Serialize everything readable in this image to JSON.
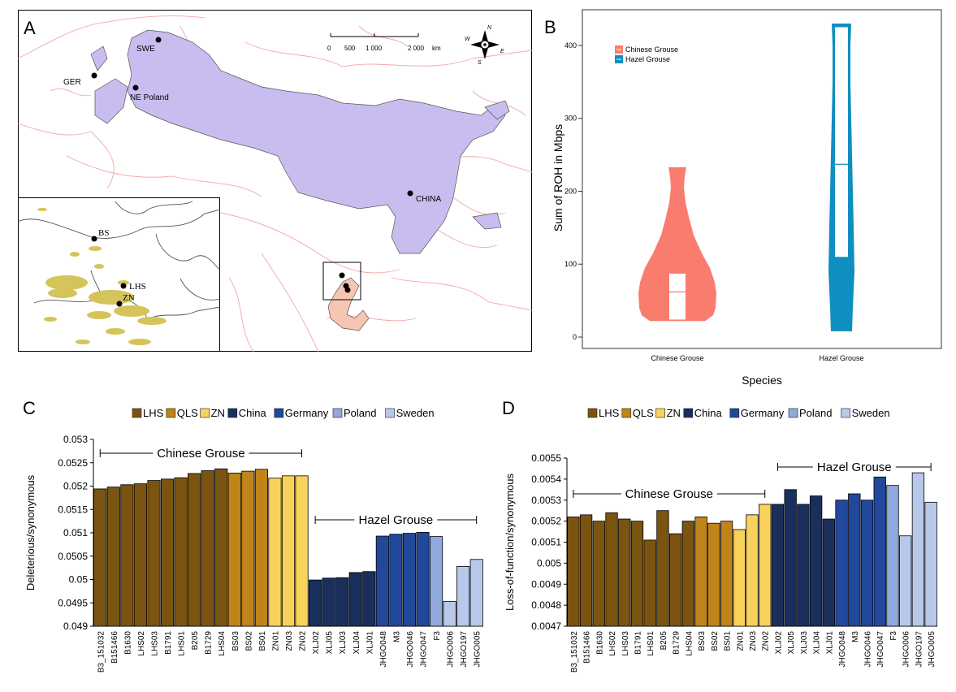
{
  "panels": {
    "A": {
      "letter": "A",
      "scale": {
        "ticks": [
          "0",
          "500",
          "1 000",
          "2 000"
        ],
        "unit": "km"
      },
      "compass": {
        "N": "N",
        "S": "S",
        "E": "E",
        "W": "W"
      },
      "sites": [
        {
          "label": "SWE"
        },
        {
          "label": "GER"
        },
        {
          "label": "NE Poland"
        },
        {
          "label": "CHINA"
        }
      ],
      "inset_sites": [
        {
          "label": "BS"
        },
        {
          "label": "LHS"
        },
        {
          "label": "ZN"
        }
      ],
      "colors": {
        "hazel_range": "#c9bdf0",
        "chinese_range": "#f6c6b2",
        "borders": "#f2a8a8",
        "inset_habitat": "#d4c45a"
      }
    },
    "B": {
      "letter": "B"
    },
    "C": {
      "letter": "C"
    },
    "D": {
      "letter": "D"
    }
  },
  "chart_data": [
    {
      "type": "violin",
      "panel": "B",
      "xlabel": "Species",
      "ylabel": "Sum of ROH in Mbps",
      "categories": [
        "Chinese Grouse",
        "Hazel Grouse"
      ],
      "ylim": [
        0,
        430
      ],
      "yticks": [
        0,
        100,
        200,
        300,
        400
      ],
      "legend": {
        "position": "top-left",
        "entries": [
          "Chinese Grouse",
          "Hazel Grouse"
        ]
      },
      "series": [
        {
          "name": "Chinese Grouse",
          "color": "#f87d6e",
          "min": 22,
          "max": 233,
          "q1": 24,
          "median": 62,
          "q3": 87
        },
        {
          "name": "Hazel Grouse",
          "color": "#0e8fbf",
          "min": 8,
          "max": 430,
          "q1": 110,
          "median": 237,
          "q3": 425
        }
      ]
    },
    {
      "type": "bar",
      "panel": "C",
      "ylabel": "Deleterious/synonymous",
      "ylim": [
        0.049,
        0.053
      ],
      "yticks": [
        "0.049",
        "0.0495",
        "0.05",
        "0.0505",
        "0.051",
        "0.0515",
        "0.052",
        "0.0525",
        "0.053"
      ],
      "legend": [
        {
          "name": "LHS",
          "color": "#7a5410"
        },
        {
          "name": "QLS",
          "color": "#c08418"
        },
        {
          "name": "ZN",
          "color": "#f8d25a"
        },
        {
          "name": "China",
          "color": "#1a2f5c"
        },
        {
          "name": "Germany",
          "color": "#21489a"
        },
        {
          "name": "Poland",
          "color": "#8fa9dc"
        },
        {
          "name": "Sweden",
          "color": "#b7c8ea"
        }
      ],
      "annotations": [
        {
          "text": "Chinese Grouse",
          "from": 0,
          "to": 15
        },
        {
          "text": "Hazel Grouse",
          "from": 16,
          "to": 28
        }
      ],
      "categories": [
        "B3_151032",
        "B151466",
        "B1630",
        "LHS02",
        "LHS03",
        "B1791",
        "LHS01",
        "B205",
        "B1729",
        "LHS04",
        "BS03",
        "BS02",
        "BS01",
        "ZN01",
        "ZN03",
        "ZN02",
        "XLJ02",
        "XLJ05",
        "XLJ03",
        "XLJ04",
        "XLJ01",
        "JHGO048",
        "M3",
        "JHGO046",
        "JHGO047",
        "F3",
        "JHGO006",
        "JHGO197",
        "JHGO005"
      ],
      "groups": [
        "LHS",
        "LHS",
        "LHS",
        "LHS",
        "LHS",
        "LHS",
        "LHS",
        "LHS",
        "LHS",
        "LHS",
        "QLS",
        "QLS",
        "QLS",
        "ZN",
        "ZN",
        "ZN",
        "China",
        "China",
        "China",
        "China",
        "China",
        "Germany",
        "Germany",
        "Germany",
        "Germany",
        "Poland",
        "Sweden",
        "Sweden",
        "Sweden"
      ],
      "values": [
        0.05194,
        0.05198,
        0.05203,
        0.05205,
        0.05212,
        0.05215,
        0.05218,
        0.05227,
        0.05233,
        0.05237,
        0.05228,
        0.05232,
        0.05236,
        0.05217,
        0.05222,
        0.05222,
        0.04999,
        0.05003,
        0.05004,
        0.05015,
        0.05017,
        0.05093,
        0.05097,
        0.05099,
        0.05101,
        0.05092,
        0.04953,
        0.05028,
        0.05043
      ]
    },
    {
      "type": "bar",
      "panel": "D",
      "ylabel": "Loss-of-function/synonymous",
      "ylim": [
        0.0047,
        0.0055
      ],
      "yticks": [
        "0.0047",
        "0.0048",
        "0.0049",
        "0.005",
        "0.0051",
        "0.0052",
        "0.0053",
        "0.0054",
        "0.0055"
      ],
      "legend": [
        {
          "name": "LHS",
          "color": "#7a5410"
        },
        {
          "name": "QLS",
          "color": "#c08418"
        },
        {
          "name": "ZN",
          "color": "#f8d25a"
        },
        {
          "name": "China",
          "color": "#1a2f5c"
        },
        {
          "name": "Germany",
          "color": "#21489a"
        },
        {
          "name": "Poland",
          "color": "#8fa9dc"
        },
        {
          "name": "Sweden",
          "color": "#b7c8ea"
        }
      ],
      "annotations": [
        {
          "text": "Chinese Grouse",
          "from": 0,
          "to": 15
        },
        {
          "text": "Hazel Grouse",
          "from": 16,
          "to": 28
        }
      ],
      "categories": [
        "B3_151032",
        "B151466",
        "B1630",
        "LHS02",
        "LHS03",
        "B1791",
        "LHS01",
        "B205",
        "B1729",
        "LHS04",
        "BS03",
        "BS02",
        "BS01",
        "ZN01",
        "ZN03",
        "ZN02",
        "XLJ02",
        "XLJ05",
        "XLJ03",
        "XLJ04",
        "XLJ01",
        "JHGO048",
        "M3",
        "JHGO046",
        "JHGO047",
        "F3",
        "JHGO006",
        "JHGO197",
        "JHGO005"
      ],
      "groups": [
        "LHS",
        "LHS",
        "LHS",
        "LHS",
        "LHS",
        "LHS",
        "LHS",
        "LHS",
        "LHS",
        "LHS",
        "QLS",
        "QLS",
        "QLS",
        "ZN",
        "ZN",
        "ZN",
        "China",
        "China",
        "China",
        "China",
        "China",
        "Germany",
        "Germany",
        "Germany",
        "Germany",
        "Poland",
        "Sweden",
        "Sweden",
        "Sweden"
      ],
      "values": [
        0.00522,
        0.00523,
        0.0052,
        0.00524,
        0.00521,
        0.0052,
        0.00511,
        0.00525,
        0.00514,
        0.0052,
        0.00522,
        0.00519,
        0.0052,
        0.00516,
        0.00523,
        0.00528,
        0.00528,
        0.00535,
        0.00528,
        0.00532,
        0.00521,
        0.0053,
        0.00533,
        0.0053,
        0.00541,
        0.00537,
        0.00513,
        0.00543,
        0.00529
      ]
    }
  ]
}
